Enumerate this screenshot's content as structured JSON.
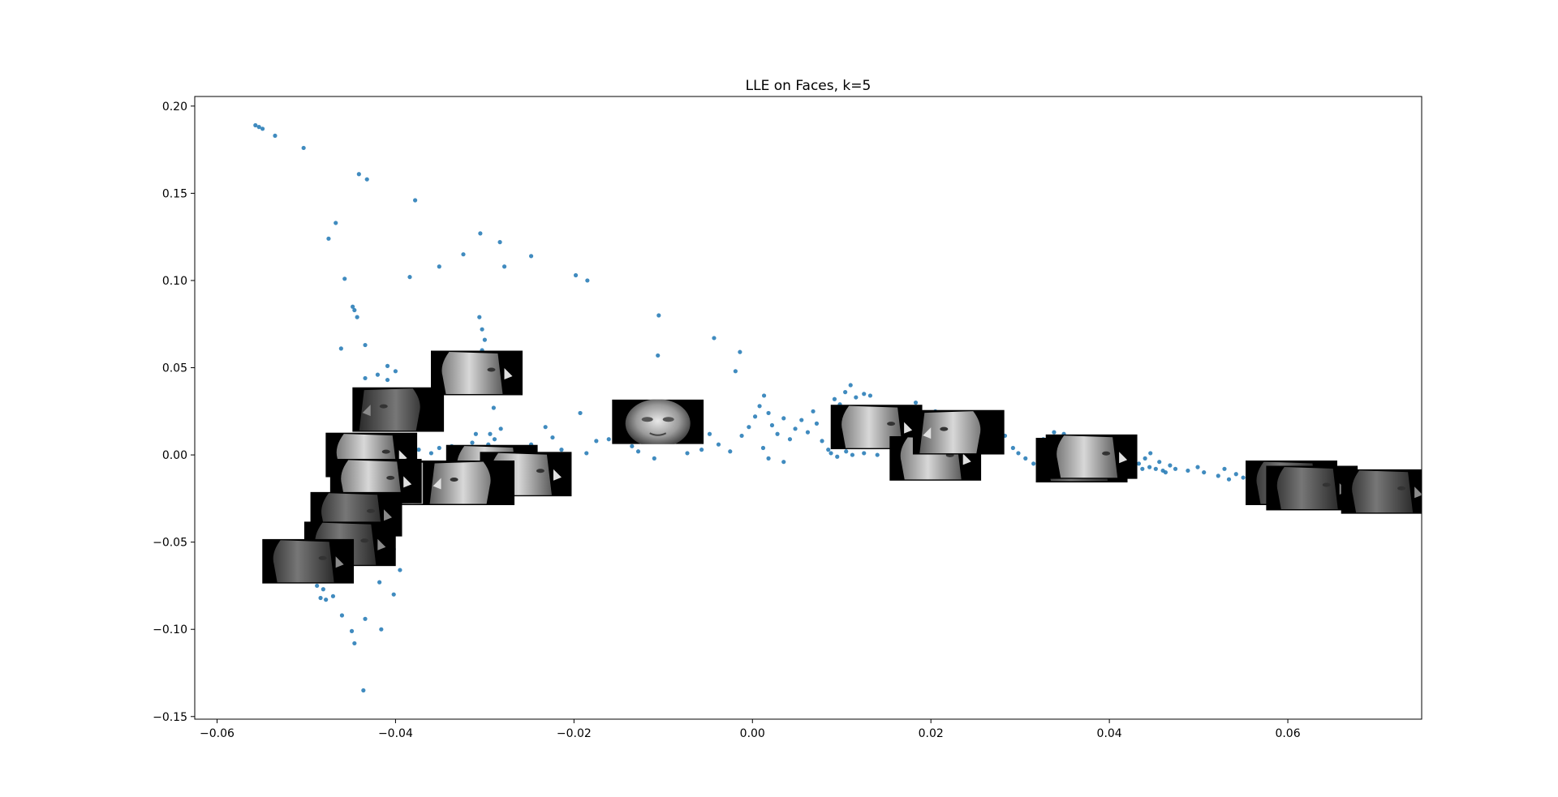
{
  "chart_data": {
    "type": "scatter",
    "title": "LLE on Faces, k=5",
    "xlabel": "",
    "ylabel": "",
    "xlim": [
      -0.0625,
      0.075
    ],
    "ylim": [
      -0.1515,
      0.2055
    ],
    "grid": false,
    "marker_color": "#1f77b4",
    "x_ticks": [
      -0.06,
      -0.04,
      -0.02,
      0.0,
      0.02,
      0.04,
      0.06
    ],
    "x_tick_labels": [
      "−0.06",
      "−0.04",
      "−0.02",
      "0.00",
      "0.02",
      "0.04",
      "0.06"
    ],
    "y_ticks": [
      -0.15,
      -0.1,
      -0.05,
      0.0,
      0.05,
      0.1,
      0.15,
      0.2
    ],
    "y_tick_labels": [
      "−0.15",
      "−0.10",
      "−0.05",
      "0.00",
      "0.05",
      "0.10",
      "0.15",
      "0.20"
    ],
    "points": [
      [
        -0.0557,
        0.189
      ],
      [
        -0.0553,
        0.188
      ],
      [
        -0.0549,
        0.187
      ],
      [
        -0.0535,
        0.183
      ],
      [
        -0.0503,
        0.176
      ],
      [
        -0.0441,
        0.161
      ],
      [
        -0.0432,
        0.158
      ],
      [
        -0.0378,
        0.146
      ],
      [
        -0.0467,
        0.133
      ],
      [
        -0.0475,
        0.124
      ],
      [
        -0.0305,
        0.127
      ],
      [
        -0.0283,
        0.122
      ],
      [
        -0.0324,
        0.115
      ],
      [
        -0.0248,
        0.114
      ],
      [
        -0.0351,
        0.108
      ],
      [
        -0.0278,
        0.108
      ],
      [
        -0.0457,
        0.101
      ],
      [
        -0.0384,
        0.102
      ],
      [
        -0.0198,
        0.103
      ],
      [
        -0.0185,
        0.1
      ],
      [
        -0.0448,
        0.085
      ],
      [
        -0.0446,
        0.083
      ],
      [
        -0.0443,
        0.079
      ],
      [
        -0.0306,
        0.079
      ],
      [
        -0.0303,
        0.072
      ],
      [
        -0.03,
        0.066
      ],
      [
        -0.0434,
        0.063
      ],
      [
        -0.0461,
        0.061
      ],
      [
        -0.0409,
        0.051
      ],
      [
        -0.04,
        0.048
      ],
      [
        -0.0303,
        0.06
      ],
      [
        -0.0298,
        0.053
      ],
      [
        -0.0434,
        0.044
      ],
      [
        -0.0409,
        0.043
      ],
      [
        -0.042,
        0.046
      ],
      [
        -0.0105,
        0.08
      ],
      [
        -0.0106,
        0.057
      ],
      [
        -0.0043,
        0.067
      ],
      [
        -0.0014,
        0.059
      ],
      [
        -0.0019,
        0.048
      ],
      [
        -0.029,
        0.027
      ],
      [
        -0.0282,
        0.015
      ],
      [
        -0.0294,
        0.012
      ],
      [
        -0.0289,
        0.009
      ],
      [
        -0.031,
        0.012
      ],
      [
        -0.0296,
        0.006
      ],
      [
        -0.0303,
        0.002
      ],
      [
        -0.027,
        0.004
      ],
      [
        -0.0248,
        0.006
      ],
      [
        -0.0224,
        0.01
      ],
      [
        -0.0232,
        0.016
      ],
      [
        -0.0214,
        0.003
      ],
      [
        -0.0193,
        0.024
      ],
      [
        -0.0186,
        0.001
      ],
      [
        -0.0175,
        0.008
      ],
      [
        -0.0161,
        0.009
      ],
      [
        -0.014,
        0.012
      ],
      [
        -0.0137,
        0.018
      ],
      [
        -0.0135,
        0.005
      ],
      [
        -0.0128,
        0.002
      ],
      [
        -0.011,
        -0.002
      ],
      [
        -0.0089,
        0.011
      ],
      [
        -0.0073,
        0.001
      ],
      [
        -0.0057,
        0.003
      ],
      [
        -0.0048,
        0.012
      ],
      [
        -0.0038,
        0.006
      ],
      [
        -0.0025,
        0.002
      ],
      [
        -0.0012,
        0.011
      ],
      [
        -0.0004,
        0.016
      ],
      [
        0.0003,
        0.022
      ],
      [
        0.0008,
        0.028
      ],
      [
        0.0013,
        0.034
      ],
      [
        0.0018,
        0.024
      ],
      [
        0.0022,
        0.017
      ],
      [
        0.0028,
        0.012
      ],
      [
        0.0035,
        0.021
      ],
      [
        0.0042,
        0.009
      ],
      [
        0.0048,
        0.015
      ],
      [
        0.0055,
        0.02
      ],
      [
        0.0062,
        0.013
      ],
      [
        0.0068,
        0.025
      ],
      [
        0.0072,
        0.018
      ],
      [
        0.0078,
        0.008
      ],
      [
        0.0085,
        0.003
      ],
      [
        0.0012,
        0.004
      ],
      [
        0.0018,
        -0.002
      ],
      [
        0.0035,
        -0.004
      ],
      [
        0.0092,
        0.032
      ],
      [
        0.0098,
        0.029
      ],
      [
        0.0104,
        0.036
      ],
      [
        0.011,
        0.04
      ],
      [
        0.0116,
        0.033
      ],
      [
        0.0125,
        0.035
      ],
      [
        0.0132,
        0.034
      ],
      [
        0.0088,
        0.001
      ],
      [
        0.0095,
        -0.001
      ],
      [
        0.0105,
        0.002
      ],
      [
        0.0112,
        0.0
      ],
      [
        0.0125,
        0.001
      ],
      [
        0.014,
        0.0
      ],
      [
        0.016,
        0.022
      ],
      [
        0.0183,
        0.03
      ],
      [
        0.0205,
        0.025
      ],
      [
        0.0215,
        0.019
      ],
      [
        0.0283,
        0.011
      ],
      [
        0.0292,
        0.004
      ],
      [
        0.0298,
        0.001
      ],
      [
        0.0306,
        -0.002
      ],
      [
        0.0315,
        -0.005
      ],
      [
        0.0326,
        0.009
      ],
      [
        0.0338,
        0.013
      ],
      [
        0.0349,
        0.012
      ],
      [
        0.036,
        0.01
      ],
      [
        0.0424,
        -0.006
      ],
      [
        0.0433,
        -0.005
      ],
      [
        0.044,
        -0.002
      ],
      [
        0.0446,
        0.001
      ],
      [
        0.0437,
        -0.008
      ],
      [
        0.0445,
        -0.007
      ],
      [
        0.0452,
        -0.008
      ],
      [
        0.046,
        -0.009
      ],
      [
        0.0468,
        -0.006
      ],
      [
        0.0474,
        -0.008
      ],
      [
        0.0456,
        -0.004
      ],
      [
        0.0463,
        -0.01
      ],
      [
        0.0488,
        -0.009
      ],
      [
        0.0499,
        -0.007
      ],
      [
        0.0506,
        -0.01
      ],
      [
        0.0522,
        -0.012
      ],
      [
        0.0529,
        -0.008
      ],
      [
        0.0534,
        -0.014
      ],
      [
        0.0542,
        -0.011
      ],
      [
        0.055,
        -0.013
      ],
      [
        0.0569,
        -0.012
      ],
      [
        0.0598,
        -0.018
      ],
      [
        0.0621,
        -0.02
      ],
      [
        -0.0374,
        0.003
      ],
      [
        -0.036,
        0.001
      ],
      [
        -0.0351,
        0.004
      ],
      [
        -0.0337,
        0.005
      ],
      [
        -0.0322,
        0.003
      ],
      [
        -0.0314,
        0.007
      ],
      [
        -0.0288,
        0.002
      ],
      [
        -0.0275,
        -0.002
      ],
      [
        -0.0259,
        0.002
      ],
      [
        -0.0401,
        -0.034
      ],
      [
        -0.0413,
        -0.031
      ],
      [
        -0.0406,
        -0.027
      ],
      [
        -0.0397,
        -0.025
      ],
      [
        -0.043,
        -0.04
      ],
      [
        -0.0402,
        -0.054
      ],
      [
        -0.0395,
        -0.066
      ],
      [
        -0.0425,
        -0.058
      ],
      [
        -0.0418,
        -0.073
      ],
      [
        -0.0402,
        -0.08
      ],
      [
        -0.0481,
        -0.077
      ],
      [
        -0.0488,
        -0.075
      ],
      [
        -0.0484,
        -0.082
      ],
      [
        -0.0478,
        -0.083
      ],
      [
        -0.047,
        -0.081
      ],
      [
        -0.046,
        -0.092
      ],
      [
        -0.0434,
        -0.094
      ],
      [
        -0.0416,
        -0.1
      ],
      [
        -0.0449,
        -0.101
      ],
      [
        -0.0446,
        -0.108
      ],
      [
        -0.0436,
        -0.135
      ],
      [
        -0.0493,
        -0.068
      ],
      [
        -0.0502,
        -0.065
      ],
      [
        -0.0511,
        -0.06
      ],
      [
        -0.0525,
        -0.063
      ]
    ],
    "thumbnails": [
      {
        "x": -0.0309,
        "y": 0.047,
        "pose": "frontal-left",
        "orientation": "left"
      },
      {
        "x": -0.0397,
        "y": 0.026,
        "pose": "profile-right-dark",
        "orientation": "right"
      },
      {
        "x": -0.0106,
        "y": 0.019,
        "pose": "frontal",
        "orientation": "front"
      },
      {
        "x": -0.0427,
        "y": 0.0,
        "pose": "three-quarter-left",
        "orientation": "left"
      },
      {
        "x": -0.0292,
        "y": -0.007,
        "pose": "profile-left-bright",
        "orientation": "left"
      },
      {
        "x": -0.0254,
        "y": -0.011,
        "pose": "three-quarter-left",
        "orientation": "left"
      },
      {
        "x": -0.0372,
        "y": -0.016,
        "pose": "tilted-down",
        "orientation": "left"
      },
      {
        "x": -0.0318,
        "y": -0.016,
        "pose": "tilted-up",
        "orientation": "right"
      },
      {
        "x": -0.0422,
        "y": -0.015,
        "pose": "profile-left",
        "orientation": "left"
      },
      {
        "x": -0.0444,
        "y": -0.034,
        "pose": "profile-left-dark",
        "orientation": "left"
      },
      {
        "x": -0.0451,
        "y": -0.051,
        "pose": "profile-left-dark",
        "orientation": "left"
      },
      {
        "x": -0.0498,
        "y": -0.061,
        "pose": "profile-left-dark",
        "orientation": "left"
      },
      {
        "x": 0.0139,
        "y": 0.016,
        "pose": "profile-left-bright",
        "orientation": "left"
      },
      {
        "x": 0.0205,
        "y": -0.002,
        "pose": "three-quarter-left",
        "orientation": "left"
      },
      {
        "x": 0.0231,
        "y": 0.013,
        "pose": "tilted-back",
        "orientation": "right"
      },
      {
        "x": 0.0369,
        "y": -0.003,
        "pose": "profile-left-dark",
        "orientation": "left"
      },
      {
        "x": 0.038,
        "y": -0.001,
        "pose": "three-quarter-left",
        "orientation": "left"
      },
      {
        "x": 0.0604,
        "y": -0.016,
        "pose": "profile-left-dark",
        "orientation": "left"
      },
      {
        "x": 0.0627,
        "y": -0.019,
        "pose": "profile-left-dark",
        "orientation": "left"
      },
      {
        "x": 0.0711,
        "y": -0.021,
        "pose": "profile-left-dark",
        "orientation": "left"
      }
    ]
  }
}
